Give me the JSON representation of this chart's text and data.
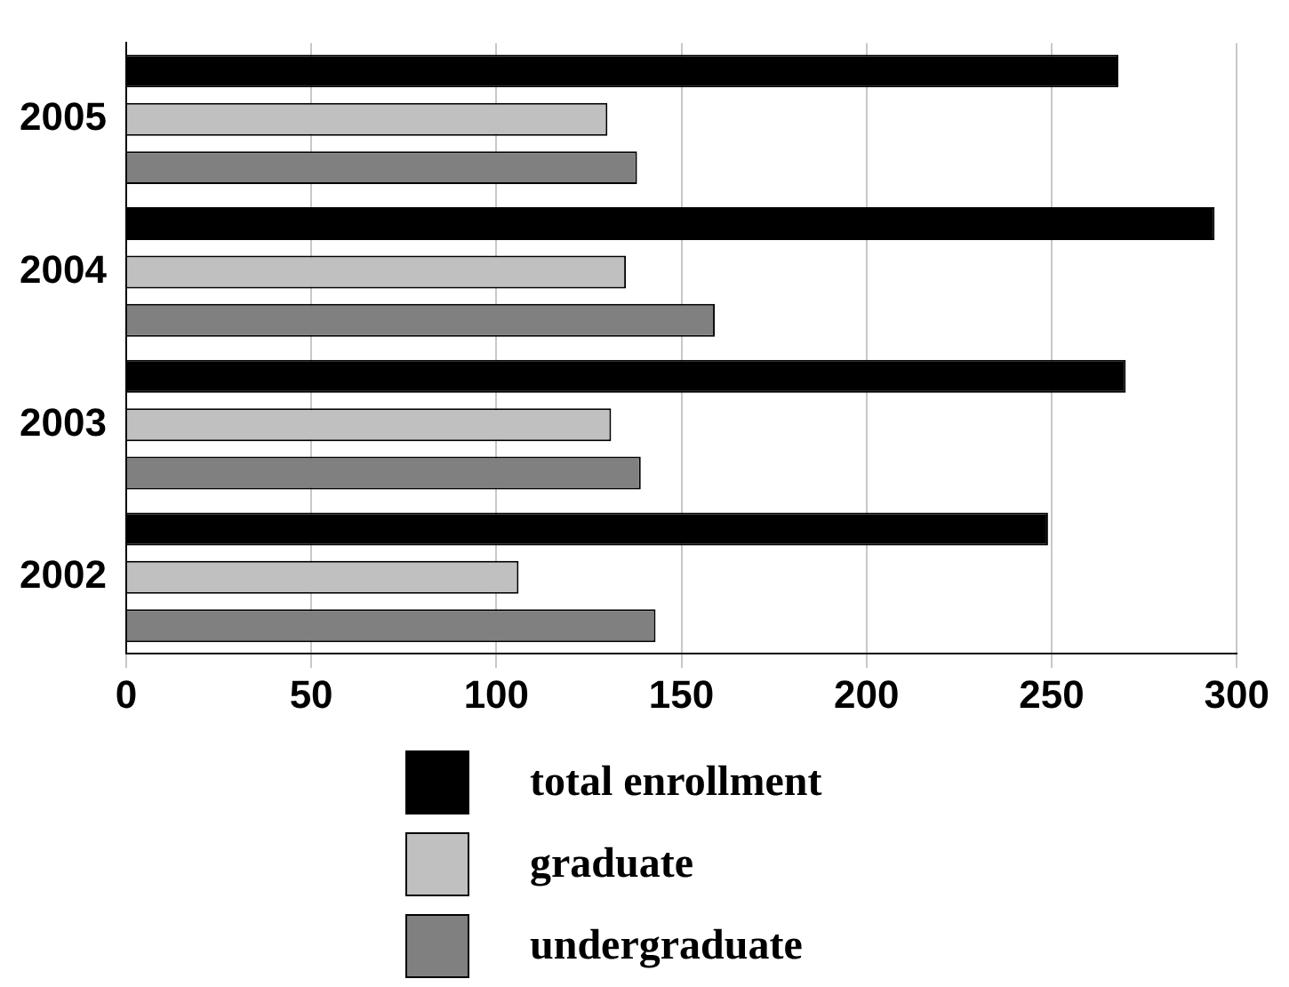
{
  "chart_data": {
    "type": "bar",
    "orientation": "horizontal",
    "categories": [
      "2005",
      "2004",
      "2003",
      "2002"
    ],
    "series": [
      {
        "name": "total enrollment",
        "color": "#000000",
        "values": [
          268,
          294,
          270,
          249
        ]
      },
      {
        "name": "graduate",
        "color": "#c0c0c0",
        "values": [
          130,
          135,
          131,
          106
        ]
      },
      {
        "name": "undergraduate",
        "color": "#808080",
        "values": [
          138,
          159,
          139,
          143
        ]
      }
    ],
    "xlim": [
      0,
      300
    ],
    "xticks": [
      0,
      50,
      100,
      150,
      200,
      250,
      300
    ],
    "grid": "x",
    "legend": "bottom"
  }
}
